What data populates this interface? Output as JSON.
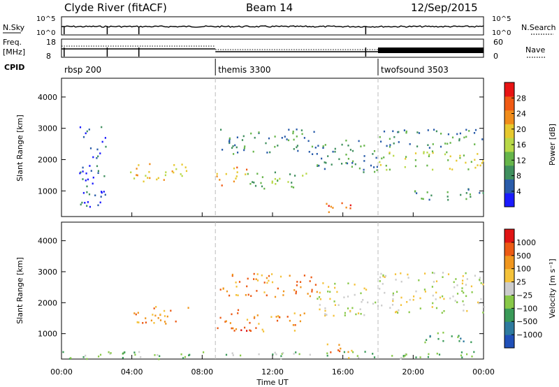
{
  "header": {
    "station": "Clyde River (fitACF)",
    "beam": "Beam 14",
    "date": "12/Sep/2015"
  },
  "colors": {
    "power_scale": [
      "#1a1aff",
      "#2a5caa",
      "#3f8f5e",
      "#66b54a",
      "#b8d848",
      "#e6c82e",
      "#f08c1a",
      "#f05a14",
      "#e81414"
    ],
    "velocity_scale": [
      "#2050b8",
      "#2e7a9e",
      "#3a9a58",
      "#88c848",
      "#cccccc",
      "#f4c23a",
      "#f0961e",
      "#ec5a14",
      "#e01414"
    ],
    "trace": "#000000",
    "divider": "#bbbbbb"
  },
  "top_strip": {
    "left_label": "N.Sky",
    "right_label": "N.Search",
    "left_ticks": [
      "10^5",
      "10^0"
    ],
    "right_ticks": [
      "10^5",
      "10^0"
    ],
    "right_legend_line": "dotted"
  },
  "freq_strip": {
    "left_label_line1": "Freq.",
    "left_label_line2": "[MHz]",
    "left_ticks": [
      "18",
      "8"
    ],
    "right_label": "Nave",
    "right_ticks": [
      "60",
      "0"
    ],
    "right_legend_line": "dotted"
  },
  "cpid": {
    "label": "CPID",
    "segments": [
      {
        "name": "rbsp 200",
        "start_hour": 0.0
      },
      {
        "name": "themis 3300",
        "start_hour": 8.75
      },
      {
        "name": "twofsound 3503",
        "start_hour": 18.0
      }
    ]
  },
  "chart_data": [
    {
      "type": "heatmap",
      "title": "Power",
      "xlabel": "",
      "ylabel": "Slant Range [km]",
      "x_range_hours": [
        0,
        24
      ],
      "ylim": [
        180,
        4600
      ],
      "y_ticks": [
        "4000",
        "3000",
        "2000",
        "1000"
      ],
      "y_tick_values": [
        4000,
        3000,
        2000,
        1000
      ],
      "colorbar": {
        "label": "Power [dB]",
        "ticks": [
          "28",
          "24",
          "20",
          "16",
          "12",
          "8",
          "4"
        ],
        "tick_values": [
          28,
          24,
          20,
          16,
          12,
          8,
          4
        ],
        "range": [
          0,
          32
        ]
      },
      "echo_regions": [
        {
          "t0": 3.8,
          "t1": 7.2,
          "r0": 1300,
          "r1": 1900,
          "level": 5
        },
        {
          "t0": 8.8,
          "t1": 10.5,
          "r0": 1200,
          "r1": 1800,
          "level": 6
        },
        {
          "t0": 10.5,
          "t1": 14.0,
          "r0": 1100,
          "r1": 1700,
          "level": 3
        },
        {
          "t0": 9.0,
          "t1": 14.5,
          "r0": 2200,
          "r1": 3000,
          "level": 2
        },
        {
          "t0": 14.5,
          "t1": 18.0,
          "r0": 1600,
          "r1": 2700,
          "level": 2
        },
        {
          "t0": 18.0,
          "t1": 24.0,
          "r0": 1700,
          "r1": 2300,
          "level": 4
        },
        {
          "t0": 18.0,
          "t1": 24.0,
          "r0": 2400,
          "r1": 3000,
          "level": 2
        },
        {
          "t0": 20.0,
          "t1": 24.0,
          "r0": 700,
          "r1": 1100,
          "level": 2
        },
        {
          "t0": 15.0,
          "t1": 16.5,
          "r0": 200,
          "r1": 700,
          "level": 7
        },
        {
          "t0": 1.0,
          "t1": 2.5,
          "r0": 500,
          "r1": 3100,
          "level": 1
        }
      ]
    },
    {
      "type": "heatmap",
      "title": "Velocity",
      "xlabel": "Time UT",
      "ylabel": "Slant Range [km]",
      "x_range_hours": [
        0,
        24
      ],
      "ylim": [
        180,
        4600
      ],
      "x_ticks": [
        "00:00",
        "04:00",
        "08:00",
        "12:00",
        "16:00",
        "20:00",
        "00:00"
      ],
      "x_tick_hours": [
        0,
        4,
        8,
        12,
        16,
        20,
        24
      ],
      "y_ticks": [
        "4000",
        "3000",
        "2000",
        "1000"
      ],
      "y_tick_values": [
        4000,
        3000,
        2000,
        1000
      ],
      "colorbar": {
        "label": "Velocity [m s⁻¹]",
        "ticks": [
          "1000",
          "500",
          "100",
          "25",
          "−25",
          "−100",
          "−500",
          "−1000"
        ],
        "tick_values": [
          1000,
          500,
          100,
          25,
          -25,
          -100,
          -500,
          -1000
        ]
      },
      "echo_regions": [
        {
          "t0": 3.8,
          "t1": 7.2,
          "r0": 1300,
          "r1": 1900,
          "level": 6
        },
        {
          "t0": 8.8,
          "t1": 10.5,
          "r0": 1100,
          "r1": 1800,
          "level": 7
        },
        {
          "t0": 10.5,
          "t1": 14.0,
          "r0": 1100,
          "r1": 1700,
          "level": 6
        },
        {
          "t0": 9.0,
          "t1": 14.5,
          "r0": 2200,
          "r1": 3000,
          "level": 6
        },
        {
          "t0": 14.5,
          "t1": 18.0,
          "r0": 1600,
          "r1": 2700,
          "level": 4
        },
        {
          "t0": 18.0,
          "t1": 24.0,
          "r0": 1700,
          "r1": 3000,
          "level": 4
        },
        {
          "t0": 20.5,
          "t1": 23.5,
          "r0": 700,
          "r1": 1100,
          "level": 2
        },
        {
          "t0": 15.0,
          "t1": 16.5,
          "r0": 200,
          "r1": 700,
          "level": 6
        },
        {
          "t0": 0.0,
          "t1": 24.0,
          "r0": 200,
          "r1": 450,
          "level": 3
        }
      ]
    }
  ]
}
